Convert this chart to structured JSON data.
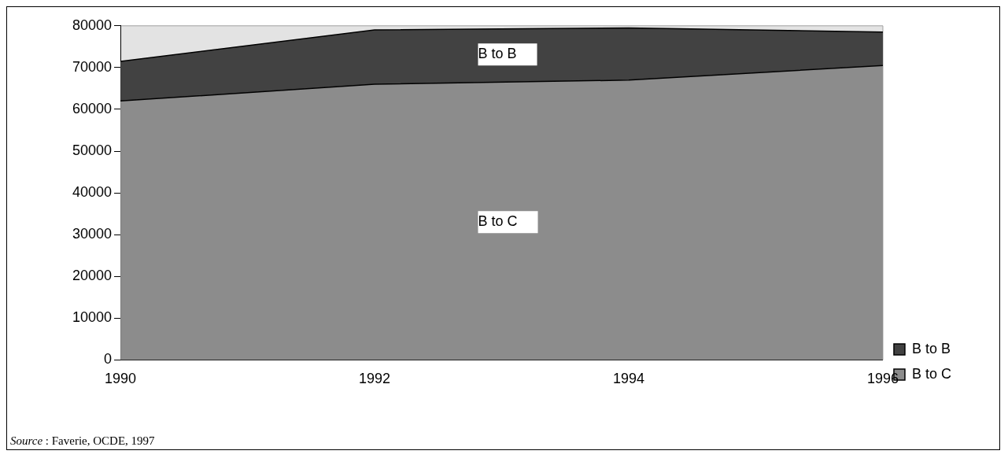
{
  "chart_data": {
    "type": "area",
    "stacked": true,
    "categories": [
      "1990",
      "1992",
      "1994",
      "1996"
    ],
    "series": [
      {
        "name": "B to C",
        "color": "#8c8c8c",
        "values": [
          62000,
          66000,
          67000,
          70500
        ]
      },
      {
        "name": "B to B",
        "color": "#424242",
        "values": [
          9500,
          13000,
          12500,
          8000
        ]
      }
    ],
    "ylim": [
      0,
      80000
    ],
    "yticks": [
      0,
      10000,
      20000,
      30000,
      40000,
      50000,
      60000,
      70000,
      80000
    ],
    "grid": false,
    "legend": "right",
    "annotations": [
      "Source : Faverie, OCDE, 1997"
    ]
  }
}
